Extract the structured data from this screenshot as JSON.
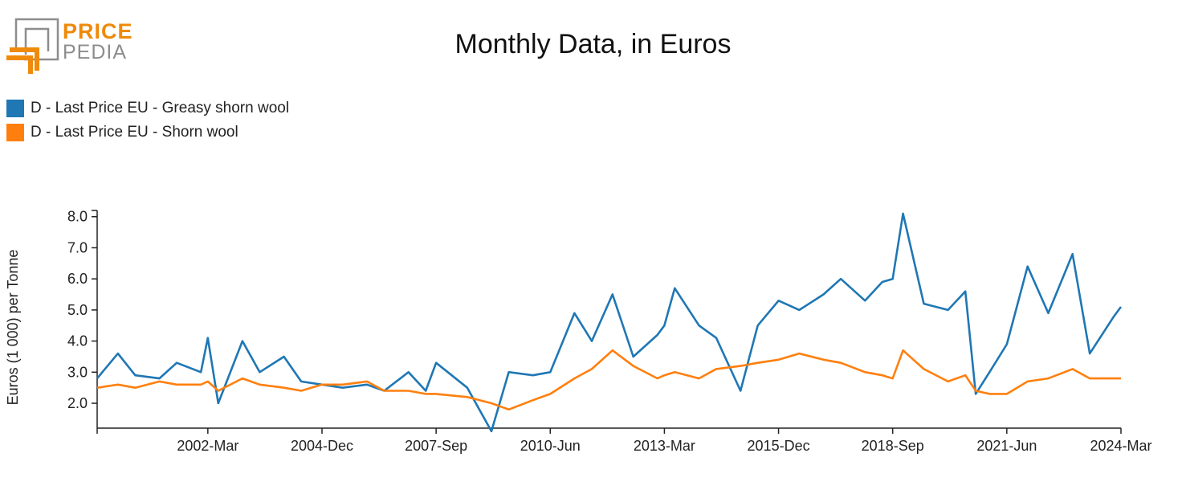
{
  "logo": {
    "word_top": "PRICE",
    "word_bottom": "PEDIA",
    "accent": "#ef8a0a",
    "gray": "#8d8d8d"
  },
  "chart_data": {
    "type": "line",
    "title": "Monthly Data, in Euros",
    "xlabel": "",
    "ylabel": "Euros (1 000) per Tonne",
    "ylim": [
      1.2,
      8.2
    ],
    "yticks": [
      "2.0",
      "3.0",
      "4.0",
      "5.0",
      "6.0",
      "7.0",
      "8.0"
    ],
    "xrange": [
      "1999-07",
      "2024-03"
    ],
    "xticks": [
      "2002-Mar",
      "2004-Dec",
      "2007-Sep",
      "2010-Jun",
      "2013-Mar",
      "2015-Dec",
      "2018-Sep",
      "2021-Jun",
      "2024-Mar"
    ],
    "grid": false,
    "legend_position": "top-left",
    "series": [
      {
        "name": "D - Last Price EU - Greasy shorn wool",
        "color": "#1f77b4",
        "x": [
          "1999-07",
          "2000-01",
          "2000-06",
          "2001-01",
          "2001-06",
          "2002-01",
          "2002-03",
          "2002-06",
          "2003-01",
          "2003-06",
          "2004-01",
          "2004-06",
          "2004-12",
          "2005-06",
          "2006-01",
          "2006-06",
          "2007-01",
          "2007-06",
          "2007-09",
          "2008-06",
          "2009-01",
          "2009-06",
          "2010-01",
          "2010-06",
          "2011-01",
          "2011-06",
          "2011-12",
          "2012-06",
          "2013-01",
          "2013-03",
          "2013-06",
          "2014-01",
          "2014-06",
          "2015-01",
          "2015-06",
          "2015-12",
          "2016-06",
          "2017-01",
          "2017-06",
          "2018-01",
          "2018-06",
          "2018-09",
          "2018-12",
          "2019-06",
          "2020-01",
          "2020-06",
          "2020-09",
          "2021-01",
          "2021-06",
          "2021-12",
          "2022-06",
          "2023-01",
          "2023-06",
          "2024-01",
          "2024-03"
        ],
        "values": [
          2.8,
          3.6,
          2.9,
          2.8,
          3.3,
          3.0,
          4.1,
          2.0,
          4.0,
          3.0,
          3.5,
          2.7,
          2.6,
          2.5,
          2.6,
          2.4,
          3.0,
          2.4,
          3.3,
          2.5,
          1.1,
          3.0,
          2.9,
          3.0,
          4.9,
          4.0,
          5.5,
          3.5,
          4.2,
          4.5,
          5.7,
          4.5,
          4.1,
          2.4,
          4.5,
          5.3,
          5.0,
          5.5,
          6.0,
          5.3,
          5.9,
          6.0,
          8.1,
          5.2,
          5.0,
          5.6,
          2.3,
          3.0,
          3.9,
          6.4,
          4.9,
          6.8,
          3.6,
          4.8,
          5.1
        ]
      },
      {
        "name": "D - Last Price EU - Shorn wool",
        "color": "#ff7f0e",
        "x": [
          "1999-07",
          "2000-01",
          "2000-06",
          "2001-01",
          "2001-06",
          "2002-01",
          "2002-03",
          "2002-06",
          "2003-01",
          "2003-06",
          "2004-01",
          "2004-06",
          "2004-12",
          "2005-06",
          "2006-01",
          "2006-06",
          "2007-01",
          "2007-06",
          "2007-09",
          "2008-06",
          "2009-01",
          "2009-06",
          "2010-01",
          "2010-06",
          "2011-01",
          "2011-06",
          "2011-12",
          "2012-06",
          "2013-01",
          "2013-03",
          "2013-06",
          "2014-01",
          "2014-06",
          "2015-01",
          "2015-06",
          "2015-12",
          "2016-06",
          "2017-01",
          "2017-06",
          "2018-01",
          "2018-06",
          "2018-09",
          "2018-12",
          "2019-06",
          "2020-01",
          "2020-06",
          "2020-09",
          "2021-01",
          "2021-06",
          "2021-12",
          "2022-06",
          "2023-01",
          "2023-06",
          "2024-01",
          "2024-03"
        ],
        "values": [
          2.5,
          2.6,
          2.5,
          2.7,
          2.6,
          2.6,
          2.7,
          2.4,
          2.8,
          2.6,
          2.5,
          2.4,
          2.6,
          2.6,
          2.7,
          2.4,
          2.4,
          2.3,
          2.3,
          2.2,
          2.0,
          1.8,
          2.1,
          2.3,
          2.8,
          3.1,
          3.7,
          3.2,
          2.8,
          2.9,
          3.0,
          2.8,
          3.1,
          3.2,
          3.3,
          3.4,
          3.6,
          3.4,
          3.3,
          3.0,
          2.9,
          2.8,
          3.7,
          3.1,
          2.7,
          2.9,
          2.4,
          2.3,
          2.3,
          2.7,
          2.8,
          3.1,
          2.8,
          2.8,
          2.8
        ]
      }
    ]
  }
}
